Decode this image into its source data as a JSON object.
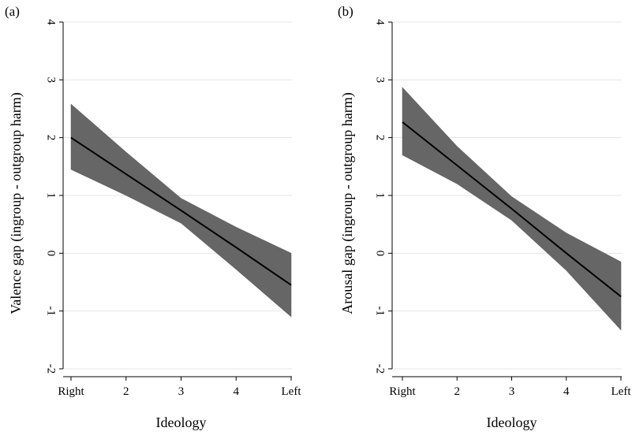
{
  "chart_data": [
    {
      "type": "line",
      "panel_label": "(a)",
      "xlabel": "Ideology",
      "ylabel": "Valence gap (ingroup - outgroup harm)",
      "x": [
        1,
        2,
        3,
        4,
        5
      ],
      "xtick_labels": [
        "Right",
        "2",
        "3",
        "4",
        "Left"
      ],
      "ylim": [
        -2,
        4
      ],
      "yticks": [
        -2,
        -1,
        0,
        1,
        2,
        3,
        4
      ],
      "ytick_labels": [
        "-2",
        "-1",
        "0",
        "1",
        "2",
        "3",
        "4"
      ],
      "grid": true,
      "series": [
        {
          "values": [
            2.0,
            1.37,
            0.74,
            0.1,
            -0.55
          ],
          "ci_lower": [
            1.45,
            1.0,
            0.52,
            -0.28,
            -1.1
          ],
          "ci_upper": [
            2.58,
            1.75,
            0.95,
            0.45,
            0.0
          ]
        }
      ]
    },
    {
      "type": "line",
      "panel_label": "(b)",
      "xlabel": "Ideology",
      "ylabel": "Arousal gap (ingroup - outgroup harm)",
      "x": [
        1,
        2,
        3,
        4,
        5
      ],
      "xtick_labels": [
        "Right",
        "2",
        "3",
        "4",
        "Left"
      ],
      "ylim": [
        -2,
        4
      ],
      "yticks": [
        -2,
        -1,
        0,
        1,
        2,
        3,
        4
      ],
      "ytick_labels": [
        "-2",
        "-1",
        "0",
        "1",
        "2",
        "3",
        "4"
      ],
      "grid": true,
      "series": [
        {
          "values": [
            2.27,
            1.52,
            0.77,
            0.0,
            -0.75
          ],
          "ci_lower": [
            1.7,
            1.2,
            0.57,
            -0.3,
            -1.33
          ],
          "ci_upper": [
            2.87,
            1.85,
            0.98,
            0.35,
            -0.15
          ]
        }
      ]
    }
  ]
}
